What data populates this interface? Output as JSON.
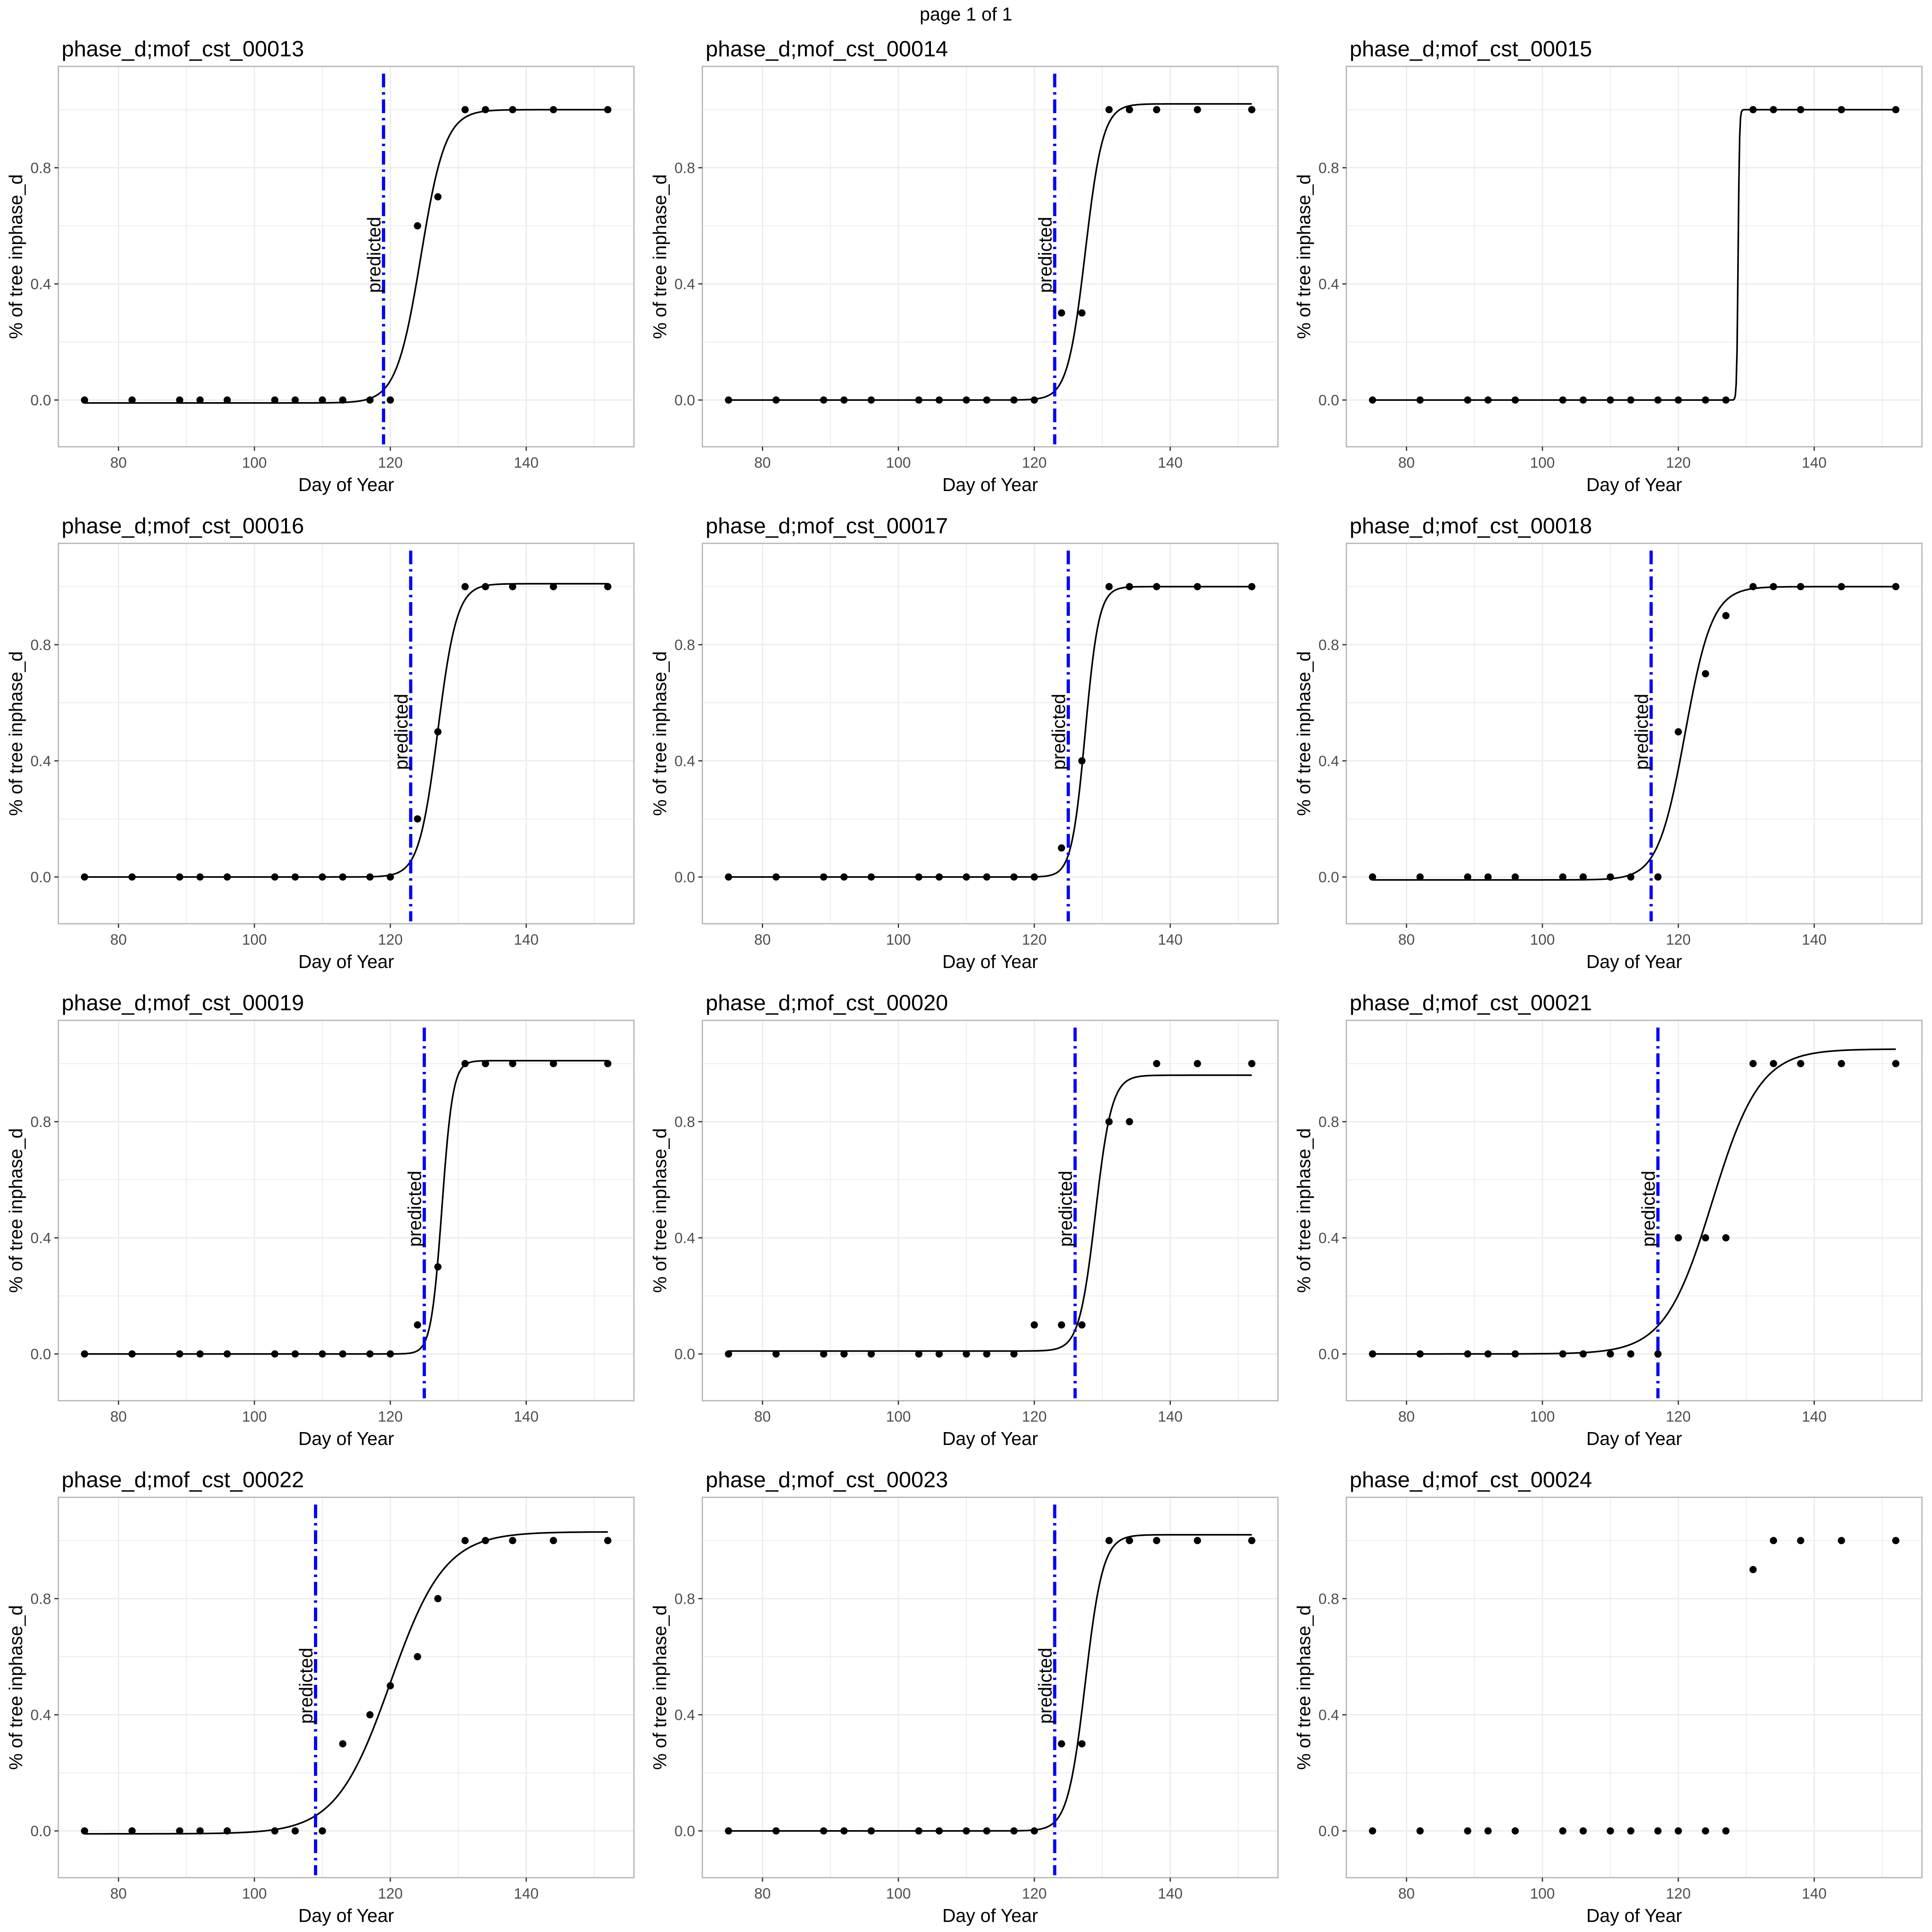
{
  "page_title": "page 1 of 1",
  "colors": {
    "predicted_line": "#0000ff",
    "fit_line": "#000000",
    "points": "#000000",
    "grid": "#ebebeb",
    "panel_border": "#b3b3b3"
  },
  "chart_data": [
    {
      "type": "scatter",
      "title": "phase_d;mof_cst_00013",
      "xlabel": "Day of Year",
      "ylabel": "% of tree inphase_d",
      "xlim": [
        71.15,
        155.85
      ],
      "ylim": [
        -0.161,
        1.149
      ],
      "x_ticks": [
        80,
        100,
        120,
        140
      ],
      "y_ticks": [
        0.0,
        0.4,
        0.8
      ],
      "y_tick_labels": [
        "0.0",
        "0.4",
        "0.8"
      ],
      "grid": true,
      "x": [
        75,
        82,
        89,
        92,
        96,
        103,
        106,
        110,
        113,
        117,
        120,
        124,
        127,
        131,
        134,
        138,
        144,
        152
      ],
      "y": [
        0,
        0,
        0,
        0,
        0,
        0,
        0,
        0,
        0,
        0,
        0,
        0.6,
        0.7,
        1,
        1,
        1,
        1,
        1
      ],
      "fit": {
        "kind": "logistic",
        "lower": -0.01,
        "upper": 1.0,
        "midpoint": 124.5,
        "scale": 1.8
      },
      "predicted": {
        "x": 119,
        "label": "predicted"
      }
    },
    {
      "type": "scatter",
      "title": "phase_d;mof_cst_00014",
      "xlabel": "Day of Year",
      "ylabel": "% of tree inphase_d",
      "xlim": [
        71.15,
        155.85
      ],
      "ylim": [
        -0.161,
        1.149
      ],
      "x_ticks": [
        80,
        100,
        120,
        140
      ],
      "y_ticks": [
        0.0,
        0.4,
        0.8
      ],
      "y_tick_labels": [
        "0.0",
        "0.4",
        "0.8"
      ],
      "grid": true,
      "x": [
        75,
        82,
        89,
        92,
        96,
        103,
        106,
        110,
        113,
        117,
        120,
        124,
        127,
        131,
        134,
        138,
        144,
        152
      ],
      "y": [
        0,
        0,
        0,
        0,
        0,
        0,
        0,
        0,
        0,
        0,
        0,
        0.3,
        0.3,
        1,
        1,
        1,
        1,
        1
      ],
      "fit": {
        "kind": "logistic",
        "lower": 0.0,
        "upper": 1.02,
        "midpoint": 127.5,
        "scale": 1.3
      },
      "predicted": {
        "x": 123,
        "label": "predicted"
      }
    },
    {
      "type": "scatter",
      "title": "phase_d;mof_cst_00015",
      "xlabel": "Day of Year",
      "ylabel": "% of tree inphase_d",
      "xlim": [
        71.15,
        155.85
      ],
      "ylim": [
        -0.161,
        1.149
      ],
      "x_ticks": [
        80,
        100,
        120,
        140
      ],
      "y_ticks": [
        0.0,
        0.4,
        0.8
      ],
      "y_tick_labels": [
        "0.0",
        "0.4",
        "0.8"
      ],
      "grid": true,
      "x": [
        75,
        82,
        89,
        92,
        96,
        103,
        106,
        110,
        113,
        117,
        120,
        124,
        127,
        131,
        134,
        138,
        144,
        152
      ],
      "y": [
        0,
        0,
        0,
        0,
        0,
        0,
        0,
        0,
        0,
        0,
        0,
        0,
        0,
        1,
        1,
        1,
        1,
        1
      ],
      "fit": {
        "kind": "logistic",
        "lower": 0.0,
        "upper": 1.0,
        "midpoint": 128.8,
        "scale": 0.1
      }
    },
    {
      "type": "scatter",
      "title": "phase_d;mof_cst_00016",
      "xlabel": "Day of Year",
      "ylabel": "% of tree inphase_d",
      "xlim": [
        71.15,
        155.85
      ],
      "ylim": [
        -0.161,
        1.149
      ],
      "x_ticks": [
        80,
        100,
        120,
        140
      ],
      "y_ticks": [
        0.0,
        0.4,
        0.8
      ],
      "y_tick_labels": [
        "0.0",
        "0.4",
        "0.8"
      ],
      "grid": true,
      "x": [
        75,
        82,
        89,
        92,
        96,
        103,
        106,
        110,
        113,
        117,
        120,
        124,
        127,
        131,
        134,
        138,
        144,
        152
      ],
      "y": [
        0,
        0,
        0,
        0,
        0,
        0,
        0,
        0,
        0,
        0,
        0,
        0.2,
        0.5,
        1,
        1,
        1,
        1,
        1
      ],
      "fit": {
        "kind": "logistic",
        "lower": 0.0,
        "upper": 1.01,
        "midpoint": 127.0,
        "scale": 1.4
      },
      "predicted": {
        "x": 123,
        "label": "predicted"
      }
    },
    {
      "type": "scatter",
      "title": "phase_d;mof_cst_00017",
      "xlabel": "Day of Year",
      "ylabel": "% of tree inphase_d",
      "xlim": [
        71.15,
        155.85
      ],
      "ylim": [
        -0.161,
        1.149
      ],
      "x_ticks": [
        80,
        100,
        120,
        140
      ],
      "y_ticks": [
        0.0,
        0.4,
        0.8
      ],
      "y_tick_labels": [
        "0.0",
        "0.4",
        "0.8"
      ],
      "grid": true,
      "x": [
        75,
        82,
        89,
        92,
        96,
        103,
        106,
        110,
        113,
        117,
        120,
        124,
        127,
        131,
        134,
        138,
        144,
        152
      ],
      "y": [
        0,
        0,
        0,
        0,
        0,
        0,
        0,
        0,
        0,
        0,
        0,
        0.1,
        0.4,
        1,
        1,
        1,
        1,
        1
      ],
      "fit": {
        "kind": "logistic",
        "lower": 0.0,
        "upper": 1.0,
        "midpoint": 127.5,
        "scale": 1.0
      },
      "predicted": {
        "x": 125,
        "label": "predicted"
      }
    },
    {
      "type": "scatter",
      "title": "phase_d;mof_cst_00018",
      "xlabel": "Day of Year",
      "ylabel": "% of tree inphase_d",
      "xlim": [
        71.15,
        155.85
      ],
      "ylim": [
        -0.161,
        1.149
      ],
      "x_ticks": [
        80,
        100,
        120,
        140
      ],
      "y_ticks": [
        0.0,
        0.4,
        0.8
      ],
      "y_tick_labels": [
        "0.0",
        "0.4",
        "0.8"
      ],
      "grid": true,
      "x": [
        75,
        82,
        89,
        92,
        96,
        103,
        106,
        110,
        113,
        117,
        120,
        124,
        127,
        131,
        134,
        138,
        144,
        152
      ],
      "y": [
        0,
        0,
        0,
        0,
        0,
        0,
        0,
        0,
        0,
        0,
        0.5,
        0.7,
        0.9,
        1,
        1,
        1,
        1,
        1
      ],
      "fit": {
        "kind": "logistic",
        "lower": -0.01,
        "upper": 1.0,
        "midpoint": 121.0,
        "scale": 2.0
      },
      "predicted": {
        "x": 116,
        "label": "predicted"
      }
    },
    {
      "type": "scatter",
      "title": "phase_d;mof_cst_00019",
      "xlabel": "Day of Year",
      "ylabel": "% of tree inphase_d",
      "xlim": [
        71.15,
        155.85
      ],
      "ylim": [
        -0.161,
        1.149
      ],
      "x_ticks": [
        80,
        100,
        120,
        140
      ],
      "y_ticks": [
        0.0,
        0.4,
        0.8
      ],
      "y_tick_labels": [
        "0.0",
        "0.4",
        "0.8"
      ],
      "grid": true,
      "x": [
        75,
        82,
        89,
        92,
        96,
        103,
        106,
        110,
        113,
        117,
        120,
        124,
        127,
        131,
        134,
        138,
        144,
        152
      ],
      "y": [
        0,
        0,
        0,
        0,
        0,
        0,
        0,
        0,
        0,
        0,
        0,
        0.1,
        0.3,
        1,
        1,
        1,
        1,
        1
      ],
      "fit": {
        "kind": "logistic",
        "lower": 0.0,
        "upper": 1.01,
        "midpoint": 127.6,
        "scale": 0.8
      },
      "predicted": {
        "x": 125,
        "label": "predicted"
      }
    },
    {
      "type": "scatter",
      "title": "phase_d;mof_cst_00020",
      "xlabel": "Day of Year",
      "ylabel": "% of tree inphase_d",
      "xlim": [
        71.15,
        155.85
      ],
      "ylim": [
        -0.161,
        1.149
      ],
      "x_ticks": [
        80,
        100,
        120,
        140
      ],
      "y_ticks": [
        0.0,
        0.4,
        0.8
      ],
      "y_tick_labels": [
        "0.0",
        "0.4",
        "0.8"
      ],
      "grid": true,
      "x": [
        75,
        82,
        89,
        92,
        96,
        103,
        106,
        110,
        113,
        117,
        120,
        124,
        127,
        131,
        134,
        138,
        144,
        152
      ],
      "y": [
        0,
        0,
        0,
        0,
        0,
        0,
        0,
        0,
        0,
        0,
        0.1,
        0.1,
        0.1,
        0.8,
        0.8,
        1,
        1,
        1
      ],
      "fit": {
        "kind": "logistic",
        "lower": 0.01,
        "upper": 0.96,
        "midpoint": 129.0,
        "scale": 1.2
      },
      "predicted": {
        "x": 126,
        "label": "predicted"
      }
    },
    {
      "type": "scatter",
      "title": "phase_d;mof_cst_00021",
      "xlabel": "Day of Year",
      "ylabel": "% of tree inphase_d",
      "xlim": [
        71.15,
        155.85
      ],
      "ylim": [
        -0.161,
        1.149
      ],
      "x_ticks": [
        80,
        100,
        120,
        140
      ],
      "y_ticks": [
        0.0,
        0.4,
        0.8
      ],
      "y_tick_labels": [
        "0.0",
        "0.4",
        "0.8"
      ],
      "grid": true,
      "x": [
        75,
        82,
        89,
        92,
        96,
        103,
        106,
        110,
        113,
        117,
        120,
        124,
        127,
        131,
        134,
        138,
        144,
        152
      ],
      "y": [
        0,
        0,
        0,
        0,
        0,
        0,
        0,
        0,
        0,
        0,
        0.4,
        0.4,
        0.4,
        1,
        1,
        1,
        1,
        1
      ],
      "fit": {
        "kind": "logistic",
        "lower": 0.0,
        "upper": 1.05,
        "midpoint": 125.0,
        "scale": 3.5
      },
      "predicted": {
        "x": 117,
        "label": "predicted"
      }
    },
    {
      "type": "scatter",
      "title": "phase_d;mof_cst_00022",
      "xlabel": "Day of Year",
      "ylabel": "% of tree inphase_d",
      "xlim": [
        71.15,
        155.85
      ],
      "ylim": [
        -0.161,
        1.149
      ],
      "x_ticks": [
        80,
        100,
        120,
        140
      ],
      "y_ticks": [
        0.0,
        0.4,
        0.8
      ],
      "y_tick_labels": [
        "0.0",
        "0.4",
        "0.8"
      ],
      "grid": true,
      "x": [
        75,
        82,
        89,
        92,
        96,
        103,
        106,
        110,
        113,
        117,
        120,
        124,
        127,
        131,
        134,
        138,
        144,
        152
      ],
      "y": [
        0,
        0,
        0,
        0,
        0,
        0,
        0,
        0,
        0.3,
        0.4,
        0.5,
        0.6,
        0.8,
        1,
        1,
        1,
        1,
        1
      ],
      "fit": {
        "kind": "logistic",
        "lower": -0.01,
        "upper": 1.03,
        "midpoint": 120.0,
        "scale": 4.0
      },
      "predicted": {
        "x": 109,
        "label": "predicted"
      }
    },
    {
      "type": "scatter",
      "title": "phase_d;mof_cst_00023",
      "xlabel": "Day of Year",
      "ylabel": "% of tree inphase_d",
      "xlim": [
        71.15,
        155.85
      ],
      "ylim": [
        -0.161,
        1.149
      ],
      "x_ticks": [
        80,
        100,
        120,
        140
      ],
      "y_ticks": [
        0.0,
        0.4,
        0.8
      ],
      "y_tick_labels": [
        "0.0",
        "0.4",
        "0.8"
      ],
      "grid": true,
      "x": [
        75,
        82,
        89,
        92,
        96,
        103,
        106,
        110,
        113,
        117,
        120,
        124,
        127,
        131,
        134,
        138,
        144,
        152
      ],
      "y": [
        0,
        0,
        0,
        0,
        0,
        0,
        0,
        0,
        0,
        0,
        0,
        0.3,
        0.3,
        1,
        1,
        1,
        1,
        1
      ],
      "fit": {
        "kind": "logistic",
        "lower": 0.0,
        "upper": 1.02,
        "midpoint": 127.5,
        "scale": 1.3
      },
      "predicted": {
        "x": 123,
        "label": "predicted"
      }
    },
    {
      "type": "scatter",
      "title": "phase_d;mof_cst_00024",
      "xlabel": "Day of Year",
      "ylabel": "% of tree inphase_d",
      "xlim": [
        71.15,
        155.85
      ],
      "ylim": [
        -0.161,
        1.149
      ],
      "x_ticks": [
        80,
        100,
        120,
        140
      ],
      "y_ticks": [
        0.0,
        0.4,
        0.8
      ],
      "y_tick_labels": [
        "0.0",
        "0.4",
        "0.8"
      ],
      "grid": true,
      "x": [
        75,
        82,
        89,
        92,
        96,
        103,
        106,
        110,
        113,
        117,
        120,
        124,
        127,
        131,
        134,
        138,
        144,
        152
      ],
      "y": [
        0,
        0,
        0,
        0,
        0,
        0,
        0,
        0,
        0,
        0,
        0,
        0,
        0,
        0.9,
        1,
        1,
        1,
        1
      ]
    }
  ]
}
